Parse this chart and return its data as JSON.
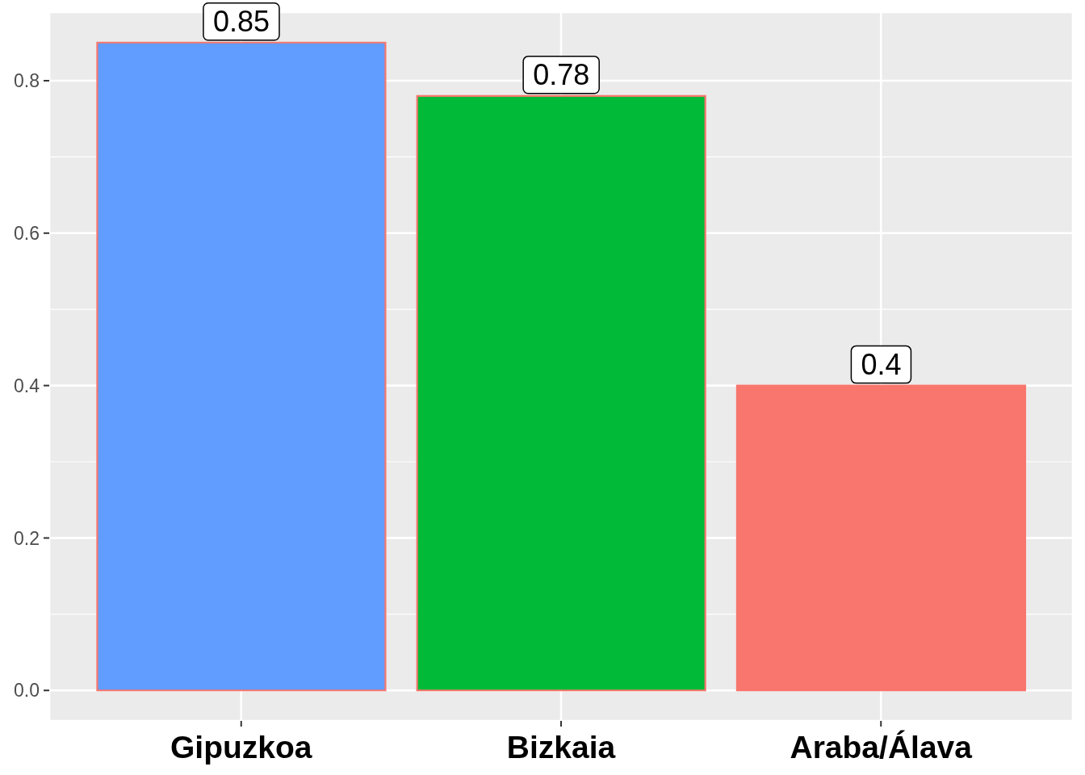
{
  "chart_data": {
    "type": "bar",
    "categories": [
      "Gipuzkoa",
      "Bizkaia",
      "Araba/Álava"
    ],
    "values": [
      0.85,
      0.78,
      0.4
    ],
    "colors": [
      "#619cff",
      "#00ba38",
      "#f8766d"
    ],
    "ylim": [
      -0.04,
      0.89
    ],
    "yticks": [
      {
        "value": 0,
        "label": "0.0"
      },
      0.2,
      0.4,
      0.6,
      0.8
    ],
    "grid": true,
    "data_labels": true
  }
}
